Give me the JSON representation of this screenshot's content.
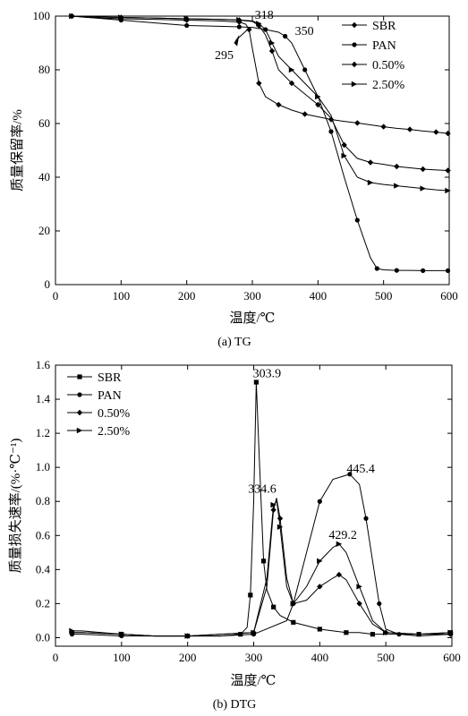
{
  "chart_data": [
    {
      "id": "tg",
      "type": "line",
      "caption": "(a)  TG",
      "xlabel": "温度/℃",
      "ylabel": "质量保留率/%",
      "xlim": [
        0,
        600
      ],
      "ylim": [
        0,
        100
      ],
      "xticks": [
        0,
        100,
        200,
        300,
        400,
        500,
        600
      ],
      "yticks": [
        0,
        20,
        40,
        60,
        80,
        100
      ],
      "legend_position": "top-right",
      "series": [
        {
          "name": "SBR",
          "marker": "diamond",
          "x": [
            25,
            50,
            100,
            150,
            200,
            250,
            280,
            290,
            295,
            300,
            310,
            320,
            340,
            360,
            380,
            400,
            420,
            440,
            460,
            480,
            500,
            520,
            540,
            560,
            580,
            598
          ],
          "y": [
            100,
            99.5,
            99,
            98.8,
            98.5,
            98.2,
            97.8,
            97,
            95,
            88,
            75,
            70,
            67,
            65,
            63.5,
            62.5,
            61.5,
            60.8,
            60.2,
            59.5,
            58.8,
            58.2,
            57.8,
            57.2,
            56.8,
            56.3
          ]
        },
        {
          "name": "PAN",
          "marker": "circle",
          "x": [
            25,
            50,
            100,
            150,
            200,
            250,
            280,
            300,
            320,
            340,
            350,
            360,
            380,
            400,
            420,
            440,
            460,
            480,
            490,
            500,
            520,
            540,
            560,
            580,
            598
          ],
          "y": [
            100,
            99.5,
            98.5,
            97.5,
            96.5,
            96.2,
            96,
            95.8,
            95,
            94,
            92.5,
            90,
            80,
            70,
            57,
            40,
            24,
            10,
            6,
            5.5,
            5.3,
            5.3,
            5.2,
            5.2,
            5.2
          ]
        },
        {
          "name": "0.50%",
          "marker": "diamond",
          "x": [
            25,
            50,
            100,
            150,
            200,
            250,
            280,
            300,
            310,
            320,
            330,
            340,
            360,
            380,
            400,
            420,
            440,
            460,
            480,
            500,
            520,
            540,
            560,
            580,
            598
          ],
          "y": [
            100,
            99.8,
            99.5,
            99.3,
            99,
            98.8,
            98.5,
            98,
            96.5,
            93,
            87,
            80,
            75,
            71,
            67,
            62,
            52,
            47,
            45.5,
            44.8,
            44,
            43.5,
            43,
            42.7,
            42.5
          ]
        },
        {
          "name": "2.50%",
          "marker": "triangle-right",
          "x": [
            25,
            50,
            100,
            150,
            200,
            250,
            280,
            300,
            310,
            320,
            330,
            340,
            360,
            380,
            400,
            420,
            440,
            460,
            480,
            500,
            520,
            540,
            560,
            580,
            598
          ],
          "y": [
            100,
            99.8,
            99.5,
            99.3,
            99,
            98.8,
            98.6,
            98.2,
            97.2,
            95,
            90,
            85,
            80,
            75,
            70,
            63,
            48,
            40,
            38,
            37.3,
            36.8,
            36.3,
            35.8,
            35.3,
            35
          ]
        }
      ],
      "annotations": [
        {
          "text": "318",
          "x": 318,
          "y": 98
        },
        {
          "text": "350",
          "x": 350,
          "y": 93
        },
        {
          "text": "295",
          "x": 295,
          "y": 93
        }
      ]
    },
    {
      "id": "dtg",
      "type": "line",
      "caption": "(b)  DTG",
      "xlabel": "温度/℃",
      "ylabel": "质量损失速率/(%·℃⁻¹)",
      "xlim": [
        0,
        600
      ],
      "ylim": [
        -0.05,
        1.6
      ],
      "xticks": [
        0,
        100,
        200,
        300,
        400,
        500,
        600
      ],
      "yticks": [
        "0.0",
        "0.2",
        "0.4",
        "0.6",
        "0.8",
        "1.0",
        "1.2",
        "1.4",
        "1.6"
      ],
      "legend_position": "top-left",
      "series": [
        {
          "name": "SBR",
          "marker": "square",
          "x": [
            25,
            40,
            100,
            150,
            200,
            250,
            280,
            290,
            295,
            300,
            303.9,
            308,
            315,
            320,
            330,
            340,
            360,
            380,
            400,
            420,
            440,
            460,
            480,
            500,
            550,
            598
          ],
          "y": [
            0.03,
            0.03,
            0.02,
            0.01,
            0.01,
            0.01,
            0.02,
            0.06,
            0.25,
            0.8,
            1.5,
            1.1,
            0.45,
            0.28,
            0.18,
            0.13,
            0.09,
            0.07,
            0.05,
            0.04,
            0.03,
            0.03,
            0.02,
            0.02,
            0.02,
            0.03
          ]
        },
        {
          "name": "PAN",
          "marker": "circle",
          "x": [
            25,
            40,
            100,
            150,
            200,
            250,
            300,
            350,
            360,
            380,
            400,
            420,
            445.4,
            460,
            470,
            480,
            490,
            500,
            520,
            550,
            598
          ],
          "y": [
            0.02,
            0.02,
            0.01,
            0.01,
            0.01,
            0.01,
            0.02,
            0.1,
            0.2,
            0.5,
            0.8,
            0.93,
            0.96,
            0.9,
            0.7,
            0.45,
            0.2,
            0.05,
            0.02,
            0.01,
            0.02
          ]
        },
        {
          "name": "0.50%",
          "marker": "diamond",
          "x": [
            25,
            40,
            100,
            150,
            200,
            250,
            300,
            320,
            330,
            334.6,
            340,
            350,
            360,
            380,
            400,
            420,
            429.2,
            440,
            460,
            480,
            500,
            550,
            598
          ],
          "y": [
            0.03,
            0.03,
            0.02,
            0.01,
            0.01,
            0.02,
            0.03,
            0.3,
            0.75,
            0.82,
            0.7,
            0.35,
            0.2,
            0.22,
            0.3,
            0.35,
            0.37,
            0.34,
            0.2,
            0.08,
            0.03,
            0.02,
            0.02
          ]
        },
        {
          "name": "2.50%",
          "marker": "triangle-right",
          "x": [
            25,
            40,
            100,
            150,
            200,
            250,
            300,
            320,
            330,
            335,
            340,
            350,
            360,
            380,
            400,
            420,
            429.2,
            440,
            460,
            480,
            500,
            550,
            598
          ],
          "y": [
            0.04,
            0.04,
            0.02,
            0.01,
            0.01,
            0.02,
            0.03,
            0.35,
            0.78,
            0.8,
            0.65,
            0.3,
            0.2,
            0.3,
            0.45,
            0.53,
            0.55,
            0.5,
            0.3,
            0.1,
            0.03,
            0.02,
            0.03
          ]
        }
      ],
      "annotations": [
        {
          "text": "303.9",
          "x": 303.9,
          "y": 1.5
        },
        {
          "text": "334.6",
          "x": 334.6,
          "y": 0.82
        },
        {
          "text": "445.4",
          "x": 445.4,
          "y": 0.96
        },
        {
          "text": "429.2",
          "x": 429.2,
          "y": 0.55
        }
      ]
    }
  ]
}
